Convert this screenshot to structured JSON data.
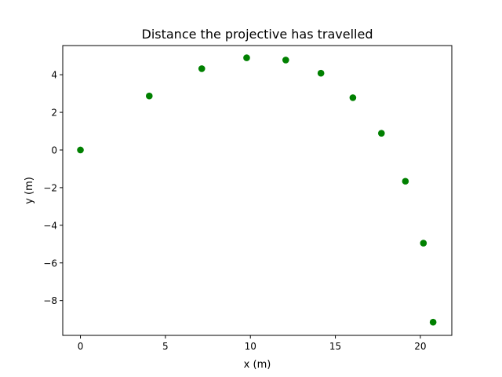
{
  "chart_data": {
    "type": "scatter",
    "title": "Distance the projective has travelled",
    "xlabel": "x (m)",
    "ylabel": "y (m)",
    "xlim": [
      -1.04,
      21.85
    ],
    "ylim": [
      -9.85,
      5.55
    ],
    "grid": false,
    "x_ticks": [
      0,
      5,
      10,
      15,
      20
    ],
    "x_tick_labels": [
      "0",
      "5",
      "10",
      "15",
      "20"
    ],
    "y_ticks": [
      -8,
      -6,
      -4,
      -2,
      0,
      2,
      4
    ],
    "y_tick_labels": [
      "−8",
      "−6",
      "−4",
      "−2",
      "0",
      "2",
      "4"
    ],
    "series": [
      {
        "color": "#008000",
        "x": [
          0.0,
          4.05,
          7.14,
          9.78,
          12.08,
          14.15,
          16.03,
          17.71,
          19.12,
          20.18,
          20.75
        ],
        "y": [
          0.0,
          2.87,
          4.32,
          4.9,
          4.78,
          4.08,
          2.78,
          0.89,
          -1.66,
          -4.95,
          -9.15
        ]
      }
    ]
  }
}
